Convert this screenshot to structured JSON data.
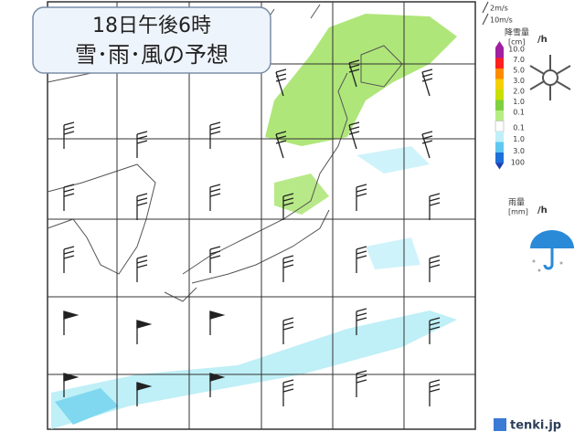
{
  "title": {
    "line1": "18日午後6時",
    "line2": "雪･雨･風の予想"
  },
  "wind_legend": {
    "small": "2m/s",
    "large": "10m/s"
  },
  "snow_legend": {
    "label": "降雪量",
    "unit": "[cm]",
    "per": "/h",
    "levels": [
      "10.0",
      "7.0",
      "5.0",
      "3.0",
      "2.0",
      "1.0",
      "0.1"
    ]
  },
  "rain_legend": {
    "label": "雨量",
    "unit": "[mm]",
    "per": "/h",
    "levels": [
      "0.1",
      "1.0",
      "3.0",
      "100"
    ]
  },
  "brand": "tenki.jp"
}
